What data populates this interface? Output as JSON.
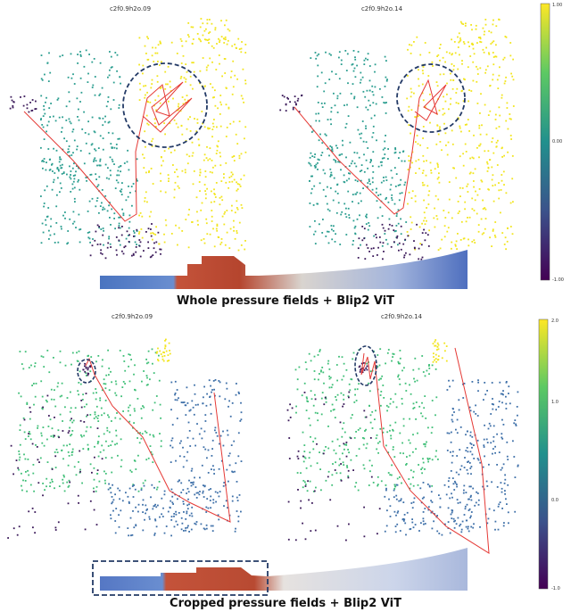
{
  "panels": [
    {
      "id": "top-left",
      "title": "c2f0.9h2o.09"
    },
    {
      "id": "top-right",
      "title": "c2f0.9h2o.14"
    },
    {
      "id": "bottom-left",
      "title": "c2f0.9h2o.09"
    },
    {
      "id": "bottom-right",
      "title": "c2f0.9h2o.14"
    }
  ],
  "captions": {
    "top": "Whole pressure fields + Blip2 ViT",
    "bottom": "Cropped pressure fields + Blip2 ViT"
  },
  "colorbars": {
    "top": {
      "max": "1.00",
      "mid": "0.00",
      "min": "-1.00"
    },
    "bottom": {
      "max": "2.0",
      "mid": "1.0",
      "low": "0.0",
      "min": "-1.0"
    }
  },
  "colors": {
    "yellow": "#f2e51f",
    "teal": "#2a9d8f",
    "green": "#3fbf77",
    "blue": "#3d6fa8",
    "purple": "#3b1a5a",
    "trajectory": "#e53935",
    "ellipse": "#233a66"
  }
}
